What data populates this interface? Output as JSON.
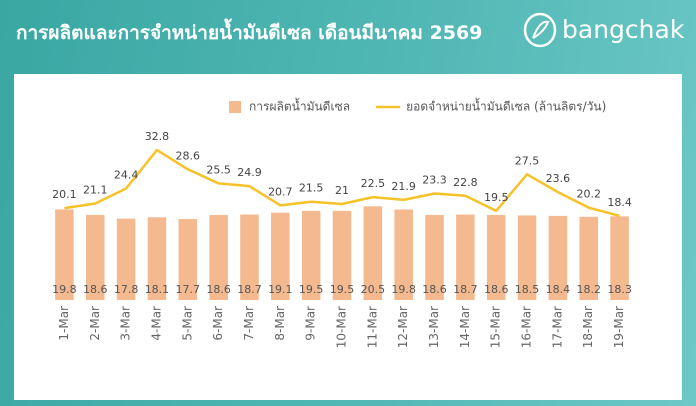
{
  "header": {
    "title": "การผลิตและการจำหน่ายน้ำมันดีเซล เดือนมีนาคม 2569",
    "logo": "bangchak"
  },
  "chart_data": {
    "type": "combo",
    "legend": "top",
    "categories": [
      "1-Mar",
      "2-Mar",
      "3-Mar",
      "4-Mar",
      "5-Mar",
      "6-Mar",
      "7-Mar",
      "8-Mar",
      "9-Mar",
      "10-Mar",
      "11-Mar",
      "12-Mar",
      "13-Mar",
      "14-Mar",
      "15-Mar",
      "16-Mar",
      "17-Mar",
      "18-Mar",
      "19-Mar"
    ],
    "ylim": [
      0,
      35
    ],
    "series": [
      {
        "name": "การผลิตน้ำมันดีเซล",
        "type": "bar",
        "color": "#f4b98e",
        "values": [
          19.8,
          18.6,
          17.8,
          18.1,
          17.7,
          18.6,
          18.7,
          19.1,
          19.5,
          19.5,
          20.5,
          19.8,
          18.6,
          18.7,
          18.6,
          18.5,
          18.4,
          18.2,
          18.3
        ]
      },
      {
        "name": "ยอดจำหน่ายน้ำมันดีเซล (ล้านลิตร/วัน)",
        "type": "line",
        "color": "#f5c22a",
        "values": [
          20.1,
          21.1,
          24.4,
          32.8,
          28.6,
          25.5,
          24.9,
          20.7,
          21.5,
          21,
          22.5,
          21.9,
          23.3,
          22.8,
          19.5,
          27.5,
          23.6,
          20.2,
          18.4
        ]
      }
    ]
  }
}
